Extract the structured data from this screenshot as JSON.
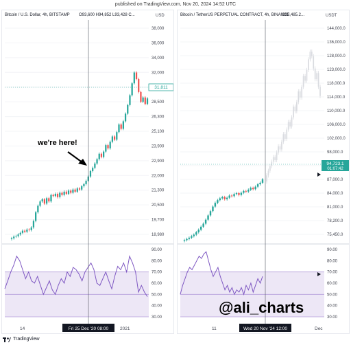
{
  "top_note": "published on TradingView.com, Nov 20, 2024 14:52 UTC",
  "footer": {
    "brand": "TradingView"
  },
  "colors": {
    "up": "#26a69a",
    "down": "#ef5350",
    "rsi": "#7e57c2",
    "band_fill": "#ede7f6",
    "band_line": "#b39ddb",
    "projection": "#d9dbe0",
    "accent": "#2962ff"
  },
  "left": {
    "title": "Bitcoin / U.S. Dollar, 4h, BITSTAMP",
    "ohlc": "O93,600  H94,852  L93,428  C...",
    "currency": "USD",
    "price_labels": [
      "38,000",
      "36,000",
      "34,000",
      "32,000",
      "30,000",
      "28,500",
      "26,300",
      "25,100",
      "23,900",
      "22,900",
      "22,000",
      "21,300",
      "20,500",
      "19,700",
      "18,980"
    ],
    "last_price": "31,811",
    "rsi_labels": [
      "90.00",
      "80.00",
      "70.00",
      "60.00",
      "50.00",
      "40.00",
      "30.00"
    ],
    "time_labels": [
      "14",
      "2021"
    ],
    "crosshair_time": "Fri 25 Dec '20   08:00",
    "annotation": "we're here!"
  },
  "right": {
    "title": "Bitcoin / TetherUS PERPETUAL CONTRACT, 4h, BINANCE",
    "ohlc": "O93,485.2...",
    "currency": "USDT",
    "price_labels": [
      "144,000.0",
      "136,000.0",
      "128,000.0",
      "123,000.0",
      "118,000.0",
      "114,000.0",
      "110,000.0",
      "106,000.0",
      "102,000.0",
      "98,000.0",
      "90,000.0",
      "87,000.0",
      "84,000.0",
      "81,000.0",
      "78,200.0",
      "75,450.0"
    ],
    "last_price": "94,723.1",
    "countdown": "01:07:42",
    "rsi_labels": [
      "90.00",
      "80.00",
      "70.00",
      "60.00",
      "50.00",
      "40.00",
      "30.00"
    ],
    "time_labels": [
      "11",
      "Dec"
    ],
    "crosshair_time": "Wed 20 Nov '24   12:00",
    "watermark": "@ali_charts"
  },
  "chart_data": [
    {
      "type": "candlestick",
      "title": "Bitcoin / U.S. Dollar, 4h, BITSTAMP",
      "y_axis": "USD",
      "ylim": [
        18500,
        38800
      ],
      "close": [
        18900,
        19050,
        19100,
        19250,
        19400,
        19600,
        19500,
        19700,
        19650,
        19900,
        20500,
        21300,
        21900,
        22300,
        22500,
        22100,
        22600,
        22300,
        22900,
        22800,
        23000,
        22700,
        23100,
        22900,
        23200,
        23000,
        23300,
        23100,
        23400,
        23200,
        23500,
        23400,
        23700,
        23900,
        24200,
        24600,
        25100,
        25400,
        25800,
        26200,
        26700,
        26400,
        26900,
        27500,
        27200,
        27800,
        28300,
        28000,
        28700,
        29400,
        29000,
        29700,
        30400,
        31200,
        32100,
        33200,
        34200,
        33600,
        32400,
        31500,
        31900,
        31300,
        31811
      ],
      "annotation": "we're here!",
      "rsi": {
        "band": [
          30,
          70
        ],
        "values": [
          55,
          62,
          70,
          76,
          84,
          80,
          72,
          64,
          70,
          62,
          60,
          66,
          58,
          50,
          56,
          62,
          54,
          50,
          58,
          64,
          60,
          70,
          66,
          74,
          72,
          68,
          62,
          70,
          74,
          78,
          72,
          60,
          58,
          64,
          70,
          62,
          55,
          66,
          75,
          72,
          78,
          70,
          84,
          78,
          70,
          52,
          58,
          52,
          48
        ]
      }
    },
    {
      "type": "candlestick",
      "title": "Bitcoin / TetherUS PERPETUAL CONTRACT, 4h, BINANCE",
      "y_axis": "USDT",
      "ylim": [
        74000,
        146000
      ],
      "close": [
        74800,
        75200,
        75600,
        76100,
        76600,
        77400,
        78200,
        79200,
        80200,
        81500,
        82900,
        84300,
        85800,
        87000,
        87900,
        88500,
        88900,
        88200,
        88700,
        89400,
        89200,
        89900,
        90200,
        89600,
        90300,
        90900,
        90700,
        91300,
        91900,
        91500,
        92300,
        93100,
        93600,
        94723.1
      ],
      "projection": "faded copy of the 2020 pattern extended to about 136,000",
      "rsi": {
        "band": [
          30,
          70
        ],
        "values": [
          50,
          58,
          64,
          70,
          74,
          72,
          76,
          80,
          84,
          82,
          86,
          88,
          80,
          72,
          66,
          70,
          74,
          66,
          60,
          54,
          58,
          52,
          56,
          50,
          54,
          52,
          56,
          50,
          58,
          54,
          60,
          52,
          58,
          64,
          60,
          66
        ]
      }
    }
  ]
}
